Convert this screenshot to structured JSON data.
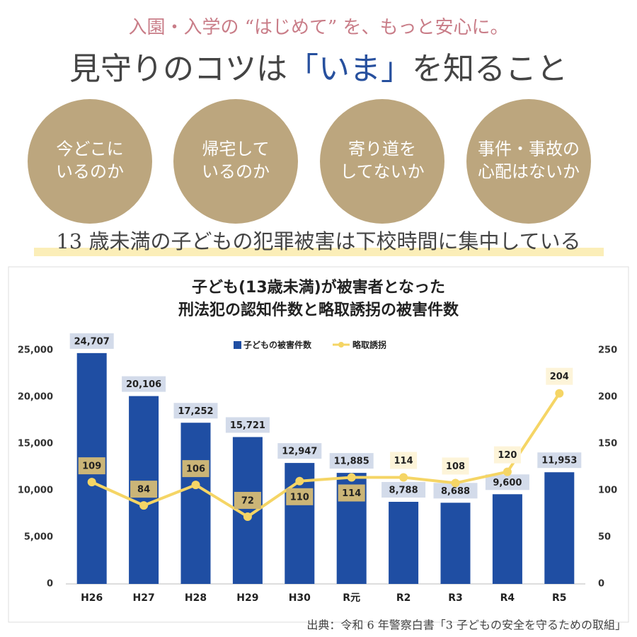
{
  "header": {
    "tagline": "入園・入学の “はじめて” を、もっと安心に。",
    "title_before": "見守りのコツは",
    "title_highlight": "「いま」",
    "title_after": "を知ること"
  },
  "circles": [
    [
      "今どこに",
      "いるのか"
    ],
    [
      "帰宅して",
      "いるのか"
    ],
    [
      "寄り道を",
      "してないか"
    ],
    [
      "事件・事故の",
      "心配はないか"
    ]
  ],
  "subtitle": "13 歳未満の子どもの犯罪被害は下校時間に集中している",
  "chart_data": {
    "type": "bar",
    "title": [
      "子ども(13歳未満)が被害者となった",
      "刑法犯の認知件数と略取誘拐の被害件数"
    ],
    "categories": [
      "H26",
      "H27",
      "H28",
      "H29",
      "H30",
      "R元",
      "R2",
      "R3",
      "R4",
      "R5"
    ],
    "series": [
      {
        "name": "子どもの被害件数",
        "type": "bar",
        "color": "#1f4ea3",
        "values": [
          24707,
          20106,
          17252,
          15721,
          12947,
          11885,
          8788,
          8688,
          9600,
          11953
        ],
        "value_labels": [
          "24,707",
          "20,106",
          "17,252",
          "15,721",
          "12,947",
          "11,885",
          "8,788",
          "8,688",
          "9,600",
          "11,953"
        ]
      },
      {
        "name": "略取誘拐",
        "type": "line",
        "axis": "y2",
        "color": "#f5d565",
        "values": [
          109,
          84,
          106,
          72,
          110,
          114,
          114,
          108,
          120,
          204
        ]
      }
    ],
    "ylim": [
      0,
      25000
    ],
    "yticks": [
      0,
      {
        "value": 5000,
        "label": "5,000"
      },
      {
        "value": 10000,
        "label": "10,000"
      },
      {
        "value": 15000,
        "label": "15,000"
      },
      {
        "value": 20000,
        "label": "20,000"
      },
      {
        "value": 25000,
        "label": "25,000"
      }
    ],
    "y2lim": [
      0,
      250
    ],
    "y2ticks": [
      0,
      50,
      100,
      150,
      200,
      250
    ],
    "grid": false,
    "legend": "top"
  },
  "source": "出典：令和 6 年警察白書「3 子どもの安全を守るための取組」"
}
